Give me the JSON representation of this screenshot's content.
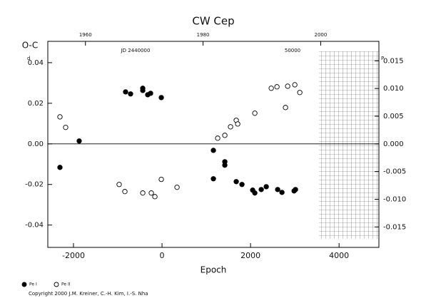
{
  "chart_data": {
    "type": "scatter",
    "title": "CW Cep",
    "y_label": "O-C",
    "x_label": "Epoch",
    "y_unit": "d",
    "y2_unit": "P",
    "xlim": [
      -2580,
      4900
    ],
    "xticks": [
      -2000,
      0,
      2000,
      4000
    ],
    "ylim": [
      -0.051,
      0.0505
    ],
    "yticks": [
      -0.04,
      -0.02,
      {
        "value": 0,
        "label": "0.00"
      },
      0.02,
      0.04
    ],
    "y2lim": [
      -0.01869,
      0.01851
    ],
    "y2ticks": [
      -0.015,
      {
        "value": -0.01,
        "label": "-0.010"
      },
      -0.005,
      {
        "value": 0,
        "label": "0.000"
      },
      0.005,
      {
        "value": 0.01,
        "label": "0.010"
      },
      0.015
    ],
    "x2lim": [
      1953.6,
      2009.9
    ],
    "x2ticks": [
      1960,
      1980,
      2000
    ],
    "annotations": [
      "JD 2440000",
      "50000"
    ],
    "zero_line": true,
    "series": [
      {
        "name": "Pe I",
        "color": "#000000",
        "marker": "filled",
        "x": [
          -2306,
          -1871,
          -823,
          -710,
          -435,
          -435,
          -323,
          -258,
          -16,
          1161,
          1161,
          1419,
          1419,
          1677,
          1806,
          2048,
          2097,
          2242,
          2355,
          2613,
          2710,
          2984,
          3016
        ],
        "values": [
          -0.0116,
          0.0014,
          0.0256,
          0.0246,
          0.0274,
          0.0263,
          0.0242,
          0.0249,
          0.0228,
          -0.0032,
          -0.0172,
          -0.0088,
          -0.0105,
          -0.0186,
          -0.02,
          -0.0228,
          -0.0242,
          -0.0225,
          -0.0211,
          -0.0225,
          -0.0239,
          -0.0232,
          -0.0225
        ]
      },
      {
        "name": "Pe II",
        "color": "#000000",
        "marker": "open",
        "x": [
          -2306,
          -2177,
          -968,
          -839,
          -435,
          -242,
          -161,
          -16,
          339,
          1258,
          1419,
          1548,
          1677,
          1710,
          2097,
          2468,
          2597,
          2790,
          2839,
          3000,
          3113
        ],
        "values": [
          0.0133,
          0.0081,
          -0.02,
          -0.0235,
          -0.0242,
          -0.0242,
          -0.026,
          -0.0175,
          -0.0214,
          0.0028,
          0.0042,
          0.0084,
          0.0116,
          0.0098,
          0.0151,
          0.0274,
          0.0281,
          0.0179,
          0.0284,
          0.0291,
          0.0253
        ]
      }
    ],
    "copyright": "Copyright 2000 J.M. Kreiner, C.-H. Kim, I.-S. Nha"
  }
}
